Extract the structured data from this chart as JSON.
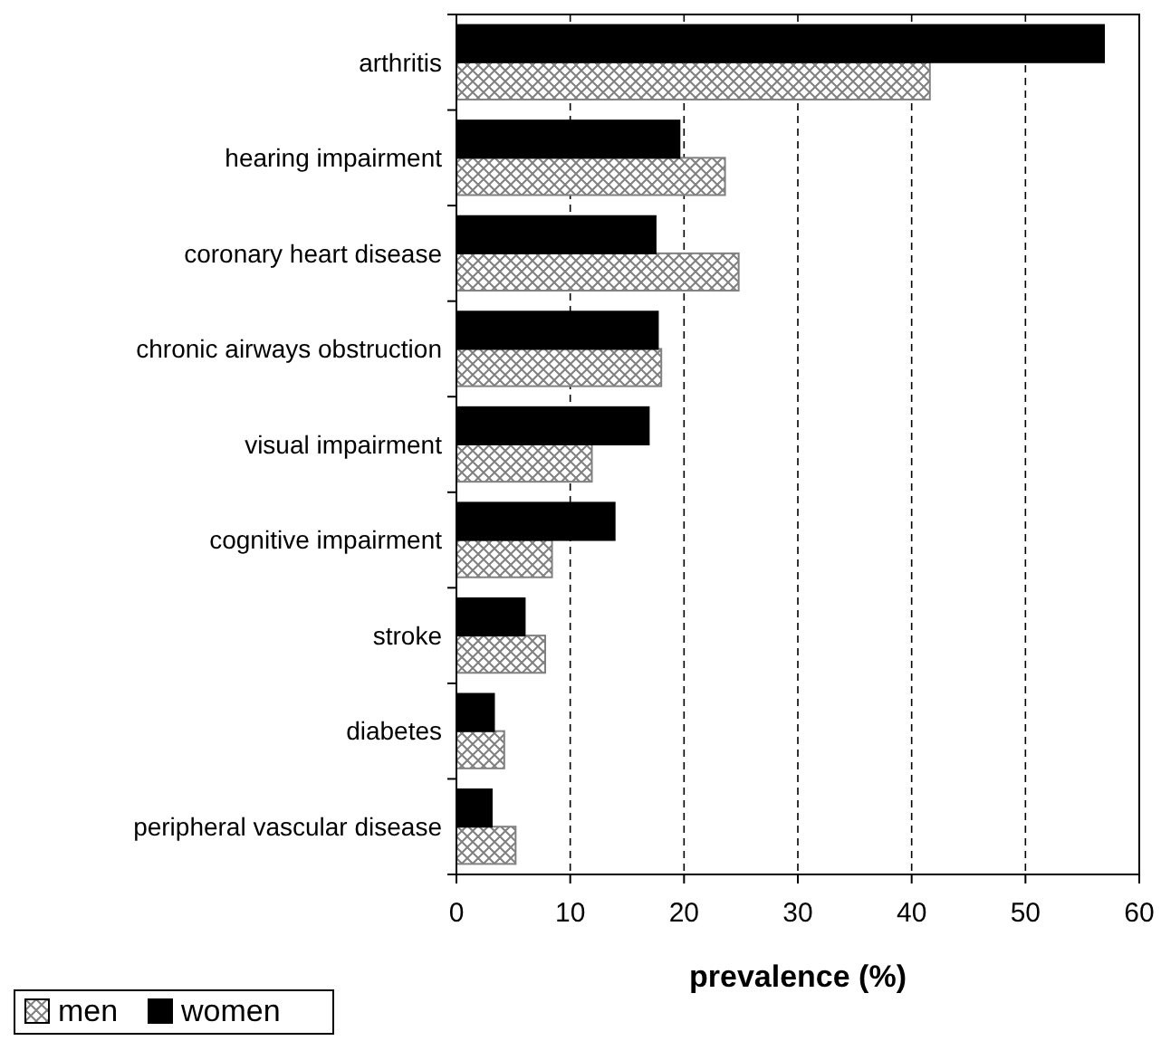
{
  "chart_data": {
    "type": "bar",
    "orientation": "horizontal",
    "xlabel": "prevalence (%)",
    "categories": [
      "arthritis",
      "hearing impairment",
      "coronary heart disease",
      "chronic airways obstruction",
      "visual impairment",
      "cognitive  impairment",
      "stroke",
      "diabetes",
      "peripheral vascular disease"
    ],
    "series": [
      {
        "name": "men",
        "color": "#808080",
        "values": [
          41.6,
          23.6,
          24.8,
          18.0,
          11.9,
          8.4,
          7.8,
          4.2,
          5.2
        ]
      },
      {
        "name": "women",
        "color": "#000000",
        "values": [
          56.9,
          19.6,
          17.5,
          17.7,
          16.9,
          13.9,
          6.0,
          3.3,
          3.1
        ]
      }
    ],
    "xlim": [
      0,
      60
    ],
    "xticks": [
      0,
      10,
      20,
      30,
      40,
      50,
      60
    ],
    "grid": "x",
    "legend": "bottom left"
  }
}
